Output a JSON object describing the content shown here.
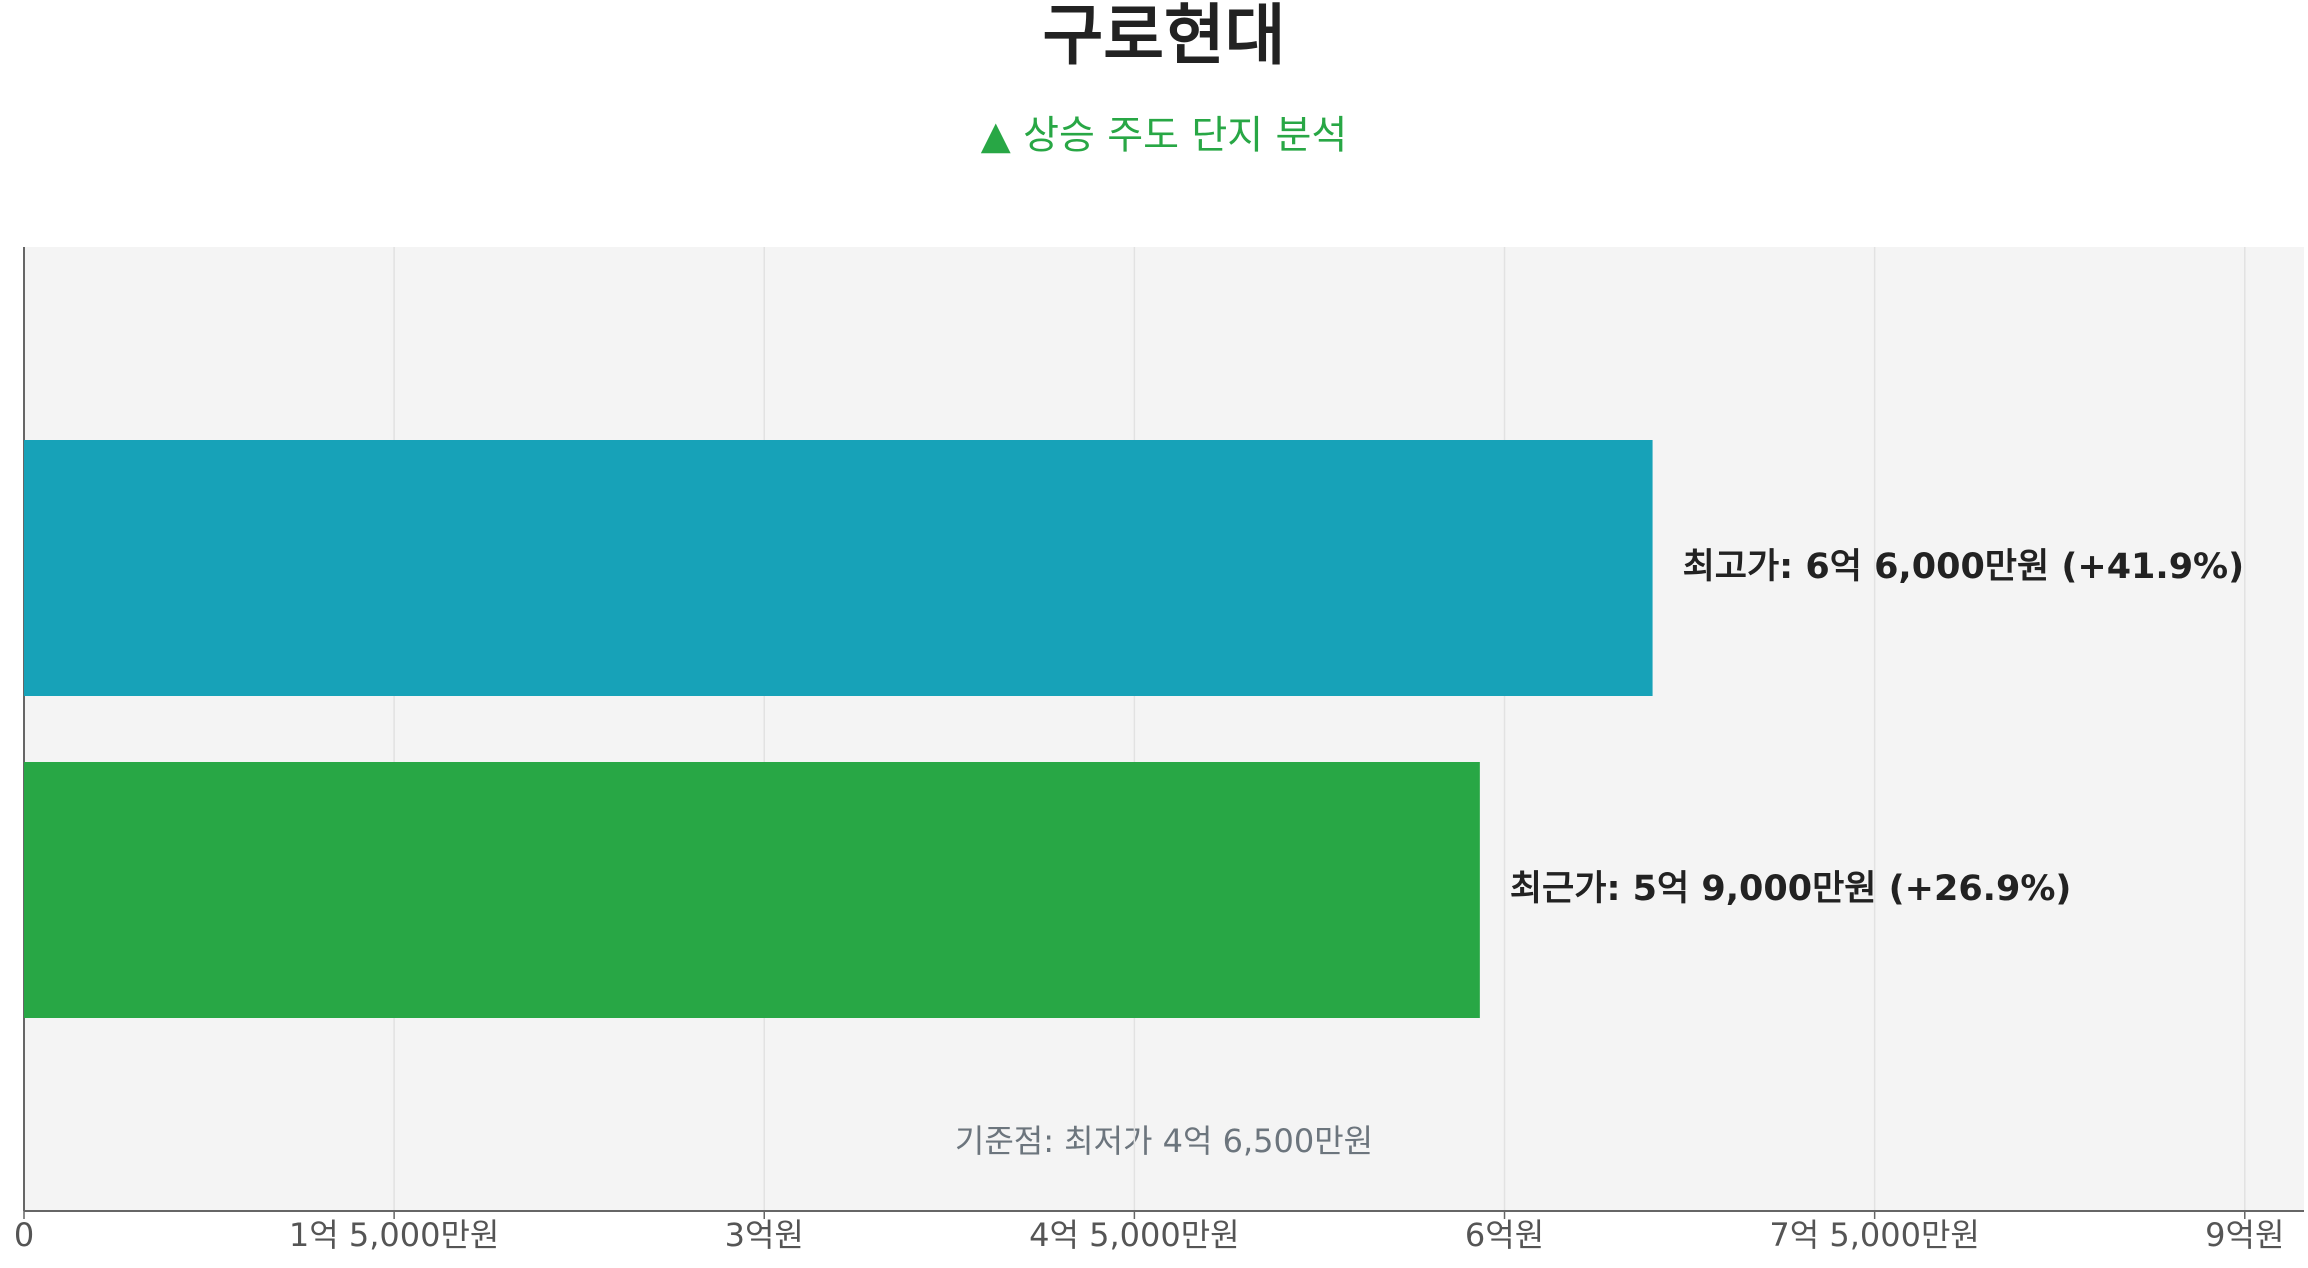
{
  "chart_data": {
    "type": "hbar",
    "title": "구로현대",
    "subtitle": "▲ 상승 주도 단지 분석",
    "values": [
      660000000,
      590000000
    ],
    "value_labels": [
      "최고가: 6억 6,000만원 (+41.9%)",
      "최근가: 5억 9,000만원 (+26.9%)"
    ],
    "colors": [
      "#17a2b8",
      "#28a745"
    ],
    "annotation": "기준점: 최저가 4억 6,500만원",
    "xlim": [
      0,
      924000000
    ],
    "xticks": [
      0,
      {
        "value": 150000000,
        "label": "1억 5,000만원"
      },
      {
        "value": 300000000,
        "label": "3억원"
      },
      {
        "value": 450000000,
        "label": "4억 5,000만원"
      },
      {
        "value": 600000000,
        "label": "6억원"
      },
      {
        "value": 750000000,
        "label": "7억 5,000만원"
      },
      {
        "value": 900000000,
        "label": "9억원"
      }
    ],
    "grid": true
  }
}
